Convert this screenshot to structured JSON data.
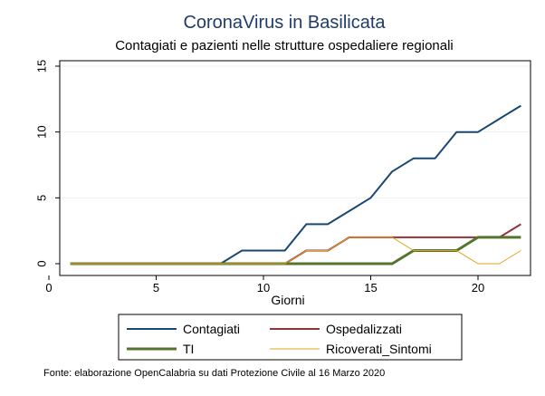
{
  "chart_data": {
    "type": "line",
    "title": "CoronaVirus in Basilicata",
    "subtitle": "Contagiati e pazienti nelle strutture ospedaliere regionali",
    "xlabel": "Giorni",
    "ylabel": "",
    "xlim": [
      0,
      22.5
    ],
    "ylim": [
      0,
      15
    ],
    "x_ticks": [
      0,
      5,
      10,
      15,
      20
    ],
    "y_ticks": [
      0,
      5,
      10,
      15
    ],
    "grid": "horizontal",
    "legend_position": "bottom",
    "x": [
      1,
      2,
      3,
      4,
      5,
      6,
      7,
      8,
      9,
      10,
      11,
      12,
      13,
      14,
      15,
      16,
      17,
      18,
      19,
      20,
      21,
      22
    ],
    "series": [
      {
        "name": "Contagiati",
        "color": "#1a476f",
        "width": 2,
        "values": [
          0,
          0,
          0,
          0,
          0,
          0,
          0,
          0,
          1,
          1,
          1,
          3,
          3,
          4,
          5,
          7,
          8,
          8,
          10,
          10,
          11,
          12
        ]
      },
      {
        "name": "Ospedalizzati",
        "color": "#90353b",
        "width": 2,
        "values": [
          0,
          0,
          0,
          0,
          0,
          0,
          0,
          0,
          0,
          0,
          0,
          1,
          1,
          2,
          2,
          2,
          2,
          2,
          2,
          2,
          2,
          3
        ]
      },
      {
        "name": "TI",
        "color": "#55752f",
        "width": 3,
        "values": [
          0,
          0,
          0,
          0,
          0,
          0,
          0,
          0,
          0,
          0,
          0,
          0,
          0,
          0,
          0,
          0,
          1,
          1,
          1,
          2,
          2,
          2
        ]
      },
      {
        "name": "Ricoverati_Sintomi",
        "color": "#e6a222",
        "width": 1,
        "values": [
          0,
          0,
          0,
          0,
          0,
          0,
          0,
          0,
          0,
          0,
          0,
          1,
          1,
          2,
          2,
          2,
          1,
          1,
          1,
          0,
          0,
          1
        ]
      }
    ]
  },
  "note": "Fonte: elaborazione OpenCalabria su dati Protezione Civile al 16 Marzo 2020"
}
